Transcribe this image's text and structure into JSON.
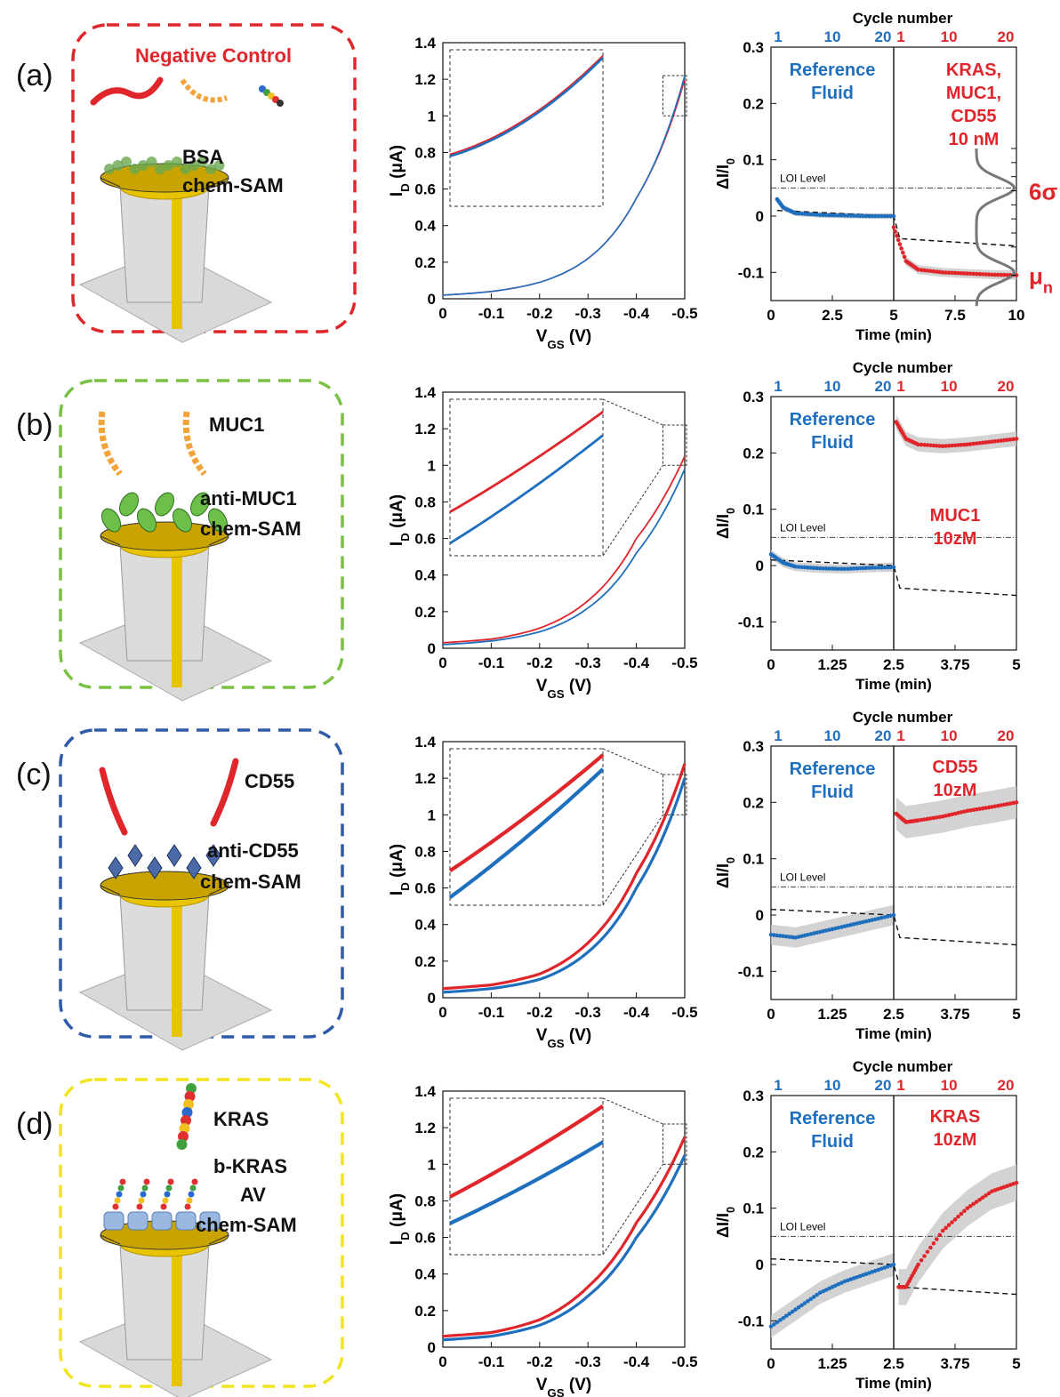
{
  "colors": {
    "reference": "#1f6fbf",
    "target": "#e0262b",
    "box_a": "#e0262b",
    "box_b": "#7ac143",
    "box_c": "#2e5aa8",
    "box_d": "#f2e41e",
    "band": "#c8c8c8",
    "gold": "#e8c400"
  },
  "panels": [
    {
      "label": "(a)",
      "schematic": {
        "title": "Negative Control",
        "labels": [
          "BSA",
          "chem-SAM"
        ],
        "molecule": "mixed proteins",
        "receptor": "bsa-layer"
      },
      "iv": {
        "ytick_labels": [
          "0",
          "0.2",
          "0.4",
          "0.6",
          "0.8",
          "1",
          "1.2",
          "1.4"
        ],
        "xtick_labels": [
          "0",
          "-0.1",
          "-0.2",
          "-0.3",
          "-0.4",
          "-0.5"
        ],
        "ylabel": "I_D (μA)",
        "xlabel": "V_GS (V)",
        "linewidth": "thin"
      },
      "response": {
        "top_axis_title": "Cycle number",
        "top_ticks_ref": [
          "1",
          "10",
          "20"
        ],
        "top_ticks_target": [
          "1",
          "10",
          "20"
        ],
        "xtick_labels": [
          "0",
          "2.5",
          "5",
          "7.5",
          "10"
        ],
        "ytick_labels": [
          "-0.1",
          "0",
          "0.1",
          "0.2",
          "0.3"
        ],
        "ylabel": "ΔI/I_0",
        "xlabel": "Time (min)",
        "loi_label": "LOI Level",
        "left_text": [
          "Reference",
          "Fluid"
        ],
        "right_text": [
          "KRAS,",
          "MUC1,",
          "CD55",
          "10 nM"
        ],
        "sigma_label": "6σ",
        "mu_label": "μn"
      }
    },
    {
      "label": "(b)",
      "schematic": {
        "title": "",
        "labels": [
          "MUC1",
          "anti-MUC1",
          "chem-SAM"
        ],
        "molecule": "MUC1",
        "receptor": "anti-MUC1"
      },
      "iv": {
        "ytick_labels": [
          "0",
          "0.2",
          "0.4",
          "0.6",
          "0.8",
          "1",
          "1.2",
          "1.4"
        ],
        "xtick_labels": [
          "0",
          "-0.1",
          "-0.2",
          "-0.3",
          "-0.4",
          "-0.5"
        ],
        "ylabel": "I_D (μA)",
        "xlabel": "V_GS (V)",
        "linewidth": "medium"
      },
      "response": {
        "top_axis_title": "Cycle number",
        "top_ticks_ref": [
          "1",
          "10",
          "20"
        ],
        "top_ticks_target": [
          "1",
          "10",
          "20"
        ],
        "xtick_labels": [
          "0",
          "1.25",
          "2.5",
          "3.75",
          "5"
        ],
        "ytick_labels": [
          "-0.1",
          "0",
          "0.1",
          "0.2",
          "0.3"
        ],
        "ylabel": "ΔI/I_0",
        "xlabel": "Time (min)",
        "loi_label": "LOI Level",
        "left_text": [
          "Reference",
          "Fluid"
        ],
        "right_text": [
          "MUC1",
          "10zM"
        ]
      }
    },
    {
      "label": "(c)",
      "schematic": {
        "title": "",
        "labels": [
          "CD55",
          "anti-CD55",
          "chem-SAM"
        ],
        "molecule": "CD55",
        "receptor": "anti-CD55"
      },
      "iv": {
        "ytick_labels": [
          "0",
          "0.2",
          "0.4",
          "0.6",
          "0.8",
          "1",
          "1.2",
          "1.4"
        ],
        "xtick_labels": [
          "0",
          "-0.1",
          "-0.2",
          "-0.3",
          "-0.4",
          "-0.5"
        ],
        "ylabel": "I_D (μA)",
        "xlabel": "V_GS (V)",
        "linewidth": "thick"
      },
      "response": {
        "top_axis_title": "Cycle number",
        "top_ticks_ref": [
          "1",
          "10",
          "20"
        ],
        "top_ticks_target": [
          "1",
          "10",
          "20"
        ],
        "xtick_labels": [
          "0",
          "1.25",
          "2.5",
          "3.75",
          "5"
        ],
        "ytick_labels": [
          "-0.1",
          "0",
          "0.1",
          "0.2",
          "0.3"
        ],
        "ylabel": "ΔI/I_0",
        "xlabel": "Time (min)",
        "loi_label": "LOI Level",
        "left_text": [
          "Reference",
          "Fluid"
        ],
        "right_text": [
          "CD55",
          "10zM"
        ]
      }
    },
    {
      "label": "(d)",
      "schematic": {
        "title": "",
        "labels": [
          "KRAS",
          "b-KRAS",
          "AV",
          "chem-SAM"
        ],
        "molecule": "KRAS",
        "receptor": "avidin"
      },
      "iv": {
        "ytick_labels": [
          "0",
          "0.2",
          "0.4",
          "0.6",
          "0.8",
          "1",
          "1.2",
          "1.4"
        ],
        "xtick_labels": [
          "0",
          "-0.1",
          "-0.2",
          "-0.3",
          "-0.4",
          "-0.5"
        ],
        "ylabel": "I_D (μA)",
        "xlabel": "V_GS (V)",
        "linewidth": "thick"
      },
      "response": {
        "top_axis_title": "Cycle number",
        "top_ticks_ref": [
          "1",
          "10",
          "20"
        ],
        "top_ticks_target": [
          "1",
          "10",
          "20"
        ],
        "xtick_labels": [
          "0",
          "1.25",
          "2.5",
          "3.75",
          "5"
        ],
        "ytick_labels": [
          "-0.1",
          "0",
          "0.1",
          "0.2",
          "0.3"
        ],
        "ylabel": "ΔI/I_0",
        "xlabel": "Time (min)",
        "loi_label": "LOI Level",
        "left_text": [
          "Reference",
          "Fluid"
        ],
        "right_text": [
          "KRAS",
          "10zM"
        ]
      }
    }
  ],
  "chart_data": [
    {
      "type": "line",
      "panel": "(a) I-V",
      "xlim": [
        0,
        -0.5
      ],
      "ylim": [
        0,
        1.4
      ],
      "series": [
        {
          "x": [
            0,
            -0.1,
            -0.2,
            -0.3,
            -0.4,
            -0.5
          ],
          "values": [
            0.02,
            0.04,
            0.09,
            0.22,
            0.55,
            1.2
          ]
        },
        {
          "x": [
            0,
            -0.1,
            -0.2,
            -0.3,
            -0.4,
            -0.5
          ],
          "values": [
            0.02,
            0.04,
            0.09,
            0.22,
            0.55,
            1.22
          ]
        }
      ]
    },
    {
      "type": "line",
      "panel": "(a) response",
      "xlim": [
        0,
        10
      ],
      "ylim": [
        -0.15,
        0.3
      ],
      "loi": 0.05,
      "series": [
        {
          "x": [
            0.25,
            0.5,
            1,
            2,
            3,
            4,
            5
          ],
          "values": [
            0.03,
            0.015,
            0.005,
            0.002,
            0.001,
            0.0,
            0.0
          ]
        },
        {
          "x": [
            5,
            5.5,
            6,
            7,
            8,
            9,
            10
          ],
          "values": [
            -0.02,
            -0.08,
            -0.095,
            -0.1,
            -0.102,
            -0.104,
            -0.105
          ]
        }
      ]
    },
    {
      "type": "line",
      "panel": "(b) I-V",
      "xlim": [
        0,
        -0.5
      ],
      "ylim": [
        0,
        1.4
      ],
      "series": [
        {
          "x": [
            0,
            -0.1,
            -0.2,
            -0.3,
            -0.4,
            -0.5
          ],
          "values": [
            0.03,
            0.05,
            0.11,
            0.26,
            0.6,
            1.05
          ]
        },
        {
          "x": [
            0,
            -0.1,
            -0.2,
            -0.3,
            -0.4,
            -0.5
          ],
          "values": [
            0.02,
            0.04,
            0.09,
            0.22,
            0.52,
            0.98
          ]
        }
      ]
    },
    {
      "type": "line",
      "panel": "(b) response",
      "xlim": [
        0,
        5
      ],
      "ylim": [
        -0.15,
        0.3
      ],
      "loi": 0.05,
      "series": [
        {
          "x": [
            0,
            0.25,
            0.5,
            1,
            1.5,
            2,
            2.5
          ],
          "values": [
            0.02,
            0.005,
            -0.002,
            -0.005,
            -0.006,
            -0.004,
            -0.003
          ]
        },
        {
          "x": [
            2.55,
            2.75,
            3,
            3.5,
            4,
            4.5,
            5
          ],
          "values": [
            0.255,
            0.225,
            0.215,
            0.212,
            0.215,
            0.22,
            0.225
          ]
        }
      ]
    },
    {
      "type": "line",
      "panel": "(c) I-V",
      "xlim": [
        0,
        -0.5
      ],
      "ylim": [
        0,
        1.4
      ],
      "series": [
        {
          "x": [
            0,
            -0.1,
            -0.2,
            -0.3,
            -0.4,
            -0.5
          ],
          "values": [
            0.05,
            0.07,
            0.13,
            0.3,
            0.68,
            1.28
          ]
        },
        {
          "x": [
            0,
            -0.1,
            -0.2,
            -0.3,
            -0.4,
            -0.5
          ],
          "values": [
            0.03,
            0.05,
            0.1,
            0.25,
            0.6,
            1.2
          ]
        }
      ]
    },
    {
      "type": "line",
      "panel": "(c) response",
      "xlim": [
        0,
        5
      ],
      "ylim": [
        -0.15,
        0.3
      ],
      "loi": 0.05,
      "series": [
        {
          "x": [
            0,
            0.5,
            1,
            1.5,
            2,
            2.5
          ],
          "values": [
            -0.035,
            -0.04,
            -0.03,
            -0.02,
            -0.01,
            0.0
          ]
        },
        {
          "x": [
            2.55,
            2.75,
            3,
            3.5,
            4,
            4.5,
            5
          ],
          "values": [
            0.18,
            0.165,
            0.168,
            0.175,
            0.185,
            0.192,
            0.2
          ]
        }
      ]
    },
    {
      "type": "line",
      "panel": "(d) I-V",
      "xlim": [
        0,
        -0.5
      ],
      "ylim": [
        0,
        1.4
      ],
      "series": [
        {
          "x": [
            0,
            -0.1,
            -0.2,
            -0.3,
            -0.4,
            -0.5
          ],
          "values": [
            0.06,
            0.08,
            0.15,
            0.33,
            0.68,
            1.15
          ]
        },
        {
          "x": [
            0,
            -0.1,
            -0.2,
            -0.3,
            -0.4,
            -0.5
          ],
          "values": [
            0.04,
            0.06,
            0.12,
            0.28,
            0.6,
            1.05
          ]
        }
      ]
    },
    {
      "type": "line",
      "panel": "(d) response",
      "xlim": [
        0,
        5
      ],
      "ylim": [
        -0.15,
        0.3
      ],
      "loi": 0.05,
      "series": [
        {
          "x": [
            0,
            0.5,
            1,
            1.5,
            2,
            2.5
          ],
          "values": [
            -0.11,
            -0.08,
            -0.05,
            -0.03,
            -0.015,
            0.0
          ]
        },
        {
          "x": [
            2.6,
            2.75,
            3,
            3.5,
            4,
            4.5,
            5
          ],
          "values": [
            -0.04,
            -0.04,
            0.0,
            0.06,
            0.1,
            0.13,
            0.145
          ]
        }
      ]
    }
  ]
}
